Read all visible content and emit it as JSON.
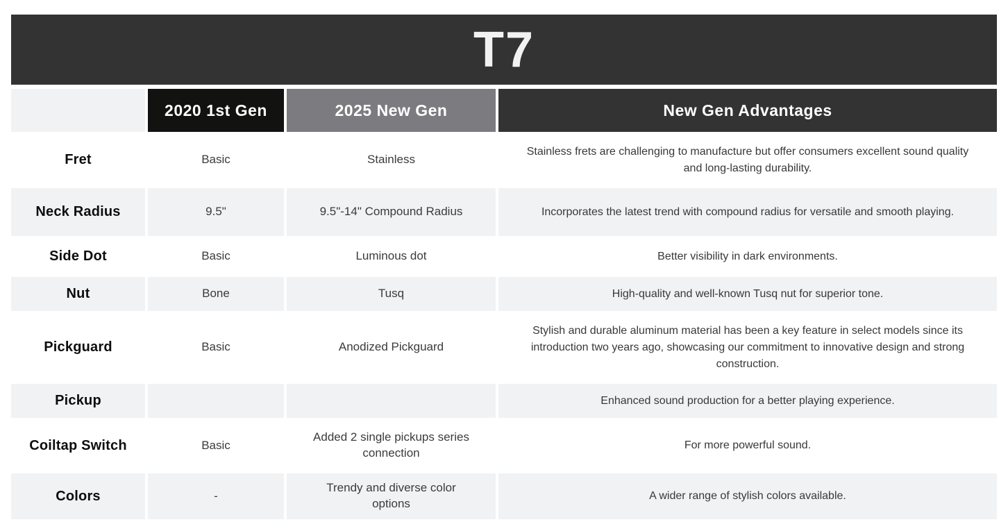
{
  "title": "T7",
  "colors": {
    "title_bar_bg": "#333333",
    "col_2020_header_bg": "#121210",
    "col_2025_header_bg": "#7c7c80",
    "advantages_header_bg": "#333333",
    "shaded_row_bg": "#f1f2f4",
    "header_text": "#ffffff"
  },
  "table": {
    "columns": [
      "",
      "2020 1st Gen",
      "2025 New Gen",
      "New Gen Advantages"
    ],
    "rows": [
      {
        "label": "Fret",
        "gen2020": "Basic",
        "gen2025": "Stainless",
        "advantage": "Stainless frets are challenging to manufacture but offer consumers excellent sound quality and long-lasting durability."
      },
      {
        "label": "Neck Radius",
        "gen2020": "9.5\"",
        "gen2025": "9.5\"-14\" Compound Radius",
        "advantage": "Incorporates the latest trend with compound radius for versatile and smooth playing."
      },
      {
        "label": "Side Dot",
        "gen2020": "Basic",
        "gen2025": "Luminous dot",
        "advantage": "Better visibility in dark environments."
      },
      {
        "label": "Nut",
        "gen2020": "Bone",
        "gen2025": "Tusq",
        "advantage": "High-quality and well-known Tusq nut for superior tone."
      },
      {
        "label": "Pickguard",
        "gen2020": "Basic",
        "gen2025": "Anodized Pickguard",
        "advantage": "Stylish and durable aluminum material has been a key feature in select models since its introduction two years ago, showcasing our commitment to innovative design and strong construction."
      },
      {
        "label": "Pickup",
        "gen2020": "",
        "gen2025": "",
        "advantage": "Enhanced sound production for a better playing experience."
      },
      {
        "label": "Coiltap Switch",
        "gen2020": "Basic",
        "gen2025": "Added 2 single pickups series connection",
        "advantage": "For more powerful sound."
      },
      {
        "label": "Colors",
        "gen2020": "-",
        "gen2025": "Trendy and diverse color options",
        "advantage": "A wider range of stylish colors available."
      }
    ]
  }
}
